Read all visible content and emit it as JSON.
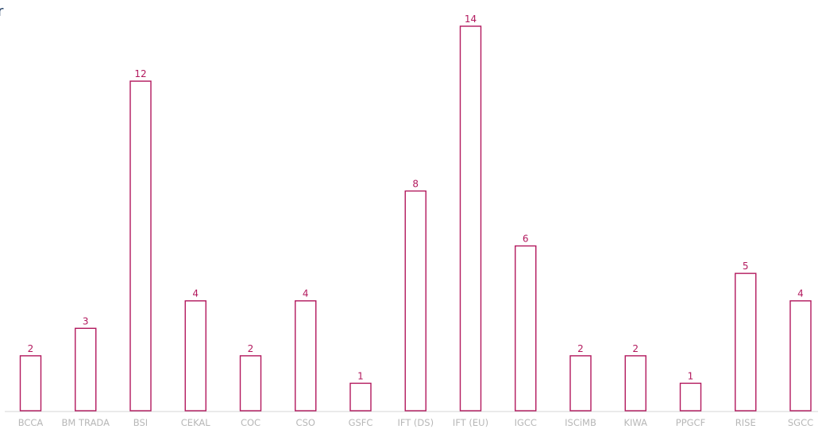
{
  "title": "ar",
  "chart_data": {
    "type": "bar",
    "categories": [
      "BCCA",
      "BM TRADA",
      "BSI",
      "CEKAL",
      "COC",
      "CSO",
      "GSFC",
      "IFT (DS)",
      "IFT (EU)",
      "IGCC",
      "ISCiMB",
      "KIWA",
      "PPGCF",
      "RISE",
      "SGCC"
    ],
    "values": [
      2,
      3,
      12,
      4,
      2,
      4,
      1,
      8,
      14,
      6,
      2,
      2,
      1,
      5,
      4
    ],
    "ylim": [
      0,
      14
    ],
    "grid": false,
    "legend": "none"
  },
  "colors": {
    "bar_stroke": "#b2185d",
    "value_label": "#b2185d",
    "category_label": "#b7b7b7",
    "title": "#1f3c63"
  }
}
